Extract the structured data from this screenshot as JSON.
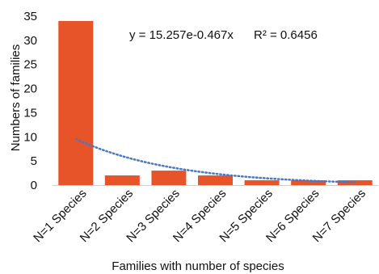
{
  "chart_data": {
    "type": "bar",
    "title": "",
    "xlabel": "Families with number of species",
    "ylabel": "Numbers of families",
    "categories": [
      "N=1 Species",
      "N=2 Species",
      "N=3 Species",
      "N=4 Species",
      "N=5 Species",
      "N=6 Species",
      "N=7 Species"
    ],
    "values": [
      34,
      2,
      3,
      2,
      1,
      1,
      1
    ],
    "ylim": [
      0,
      35
    ],
    "yticks": [
      0,
      5,
      10,
      15,
      20,
      25,
      30,
      35
    ],
    "grid": false,
    "legend": "none",
    "bar_color": "#e8542a",
    "trendline": {
      "type": "exponential",
      "equation": "y = 15.257e-0.467x",
      "r2_label": "R² = 0.6456",
      "a": 15.257,
      "b": -0.467,
      "color": "#4a78c2",
      "style": "dotted"
    }
  }
}
